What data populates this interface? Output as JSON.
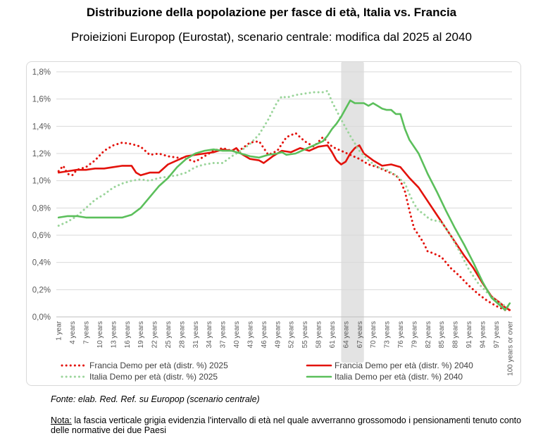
{
  "header": {
    "title": "Distribuzione della popolazione per fasce di età, Italia vs.  Francia",
    "subtitle": "Proieizioni Europop (Eurostat), scenario centrale: modifica dal 2025 al 2040"
  },
  "footer": {
    "source": "Fonte: elab. Red. Ref. su Europop (scenario centrale)",
    "note_label": "Nota:",
    "note_text": " la fascia verticale grigia evidenzia l'intervallo di età nel quale avverranno grossomodo i pensionamenti tenuto conto delle normative dei due Paesi"
  },
  "chart_data": {
    "type": "line",
    "ylim": [
      0,
      1.8
    ],
    "yticks": [
      "0,0%",
      "0,2%",
      "0,4%",
      "0,6%",
      "0,8%",
      "1,0%",
      "1,2%",
      "1,4%",
      "1,6%",
      "1,8%"
    ],
    "yticks_values": [
      0,
      0.2,
      0.4,
      0.6,
      0.8,
      1.0,
      1.2,
      1.4,
      1.6,
      1.8
    ],
    "categories_count": 100,
    "xtick_labels": [
      "1 year",
      "4 years",
      "7 years",
      "10 years",
      "13 years",
      "16 years",
      "19 years",
      "22 years",
      "25 years",
      "28 years",
      "31 years",
      "34 years",
      "37 years",
      "40 years",
      "43 years",
      "46 years",
      "49 years",
      "52 years",
      "55 years",
      "58 years",
      "61 years",
      "64 years",
      "67 years",
      "70 years",
      "73 years",
      "76 years",
      "79 years",
      "82 years",
      "85 years",
      "88 years",
      "91 years",
      "94 years",
      "97 years",
      "100 years or over"
    ],
    "xtick_indices": [
      1,
      4,
      7,
      10,
      13,
      16,
      19,
      22,
      25,
      28,
      31,
      34,
      37,
      40,
      43,
      46,
      49,
      52,
      55,
      58,
      61,
      64,
      67,
      70,
      73,
      76,
      79,
      82,
      85,
      88,
      91,
      94,
      97,
      100
    ],
    "highlight_band": [
      63,
      68
    ],
    "grid": true,
    "legend_position": "bottom",
    "series": [
      {
        "name": "Francia Demo per età (distr. %) 2025",
        "color": "#e3120b",
        "style": "dotted",
        "x": [
          1,
          2,
          3,
          4,
          5,
          7,
          9,
          11,
          13,
          15,
          17,
          19,
          21,
          23,
          25,
          27,
          29,
          31,
          33,
          35,
          37,
          39,
          41,
          43,
          45,
          47,
          49,
          51,
          53,
          55,
          57,
          59,
          61,
          63,
          65,
          67,
          69,
          71,
          73,
          75,
          76,
          77,
          78,
          79,
          80,
          81,
          82,
          83,
          85,
          87,
          89,
          91,
          93,
          95,
          97,
          99,
          100
        ],
        "y": [
          1.07,
          1.11,
          1.05,
          1.04,
          1.08,
          1.1,
          1.15,
          1.22,
          1.26,
          1.28,
          1.27,
          1.25,
          1.19,
          1.2,
          1.18,
          1.17,
          1.16,
          1.14,
          1.18,
          1.22,
          1.24,
          1.22,
          1.23,
          1.28,
          1.29,
          1.19,
          1.22,
          1.32,
          1.35,
          1.29,
          1.25,
          1.32,
          1.25,
          1.22,
          1.19,
          1.16,
          1.12,
          1.1,
          1.07,
          1.04,
          1.0,
          0.92,
          0.78,
          0.65,
          0.6,
          0.55,
          0.48,
          0.47,
          0.44,
          0.36,
          0.3,
          0.23,
          0.17,
          0.12,
          0.08,
          0.05,
          0.05
        ]
      },
      {
        "name": "Francia Demo per età (distr. %) 2040",
        "color": "#e3120b",
        "style": "solid",
        "x": [
          1,
          3,
          5,
          7,
          9,
          11,
          13,
          15,
          17,
          18,
          19,
          20,
          21,
          23,
          25,
          27,
          29,
          31,
          33,
          35,
          37,
          39,
          40,
          41,
          43,
          45,
          46,
          48,
          50,
          52,
          54,
          56,
          58,
          60,
          61,
          62,
          63,
          64,
          65,
          66,
          67,
          68,
          70,
          72,
          74,
          76,
          78,
          80,
          82,
          84,
          86,
          88,
          90,
          92,
          94,
          96,
          98,
          99,
          100
        ],
        "y": [
          1.06,
          1.07,
          1.08,
          1.08,
          1.09,
          1.09,
          1.1,
          1.11,
          1.11,
          1.06,
          1.04,
          1.05,
          1.06,
          1.06,
          1.12,
          1.15,
          1.18,
          1.19,
          1.2,
          1.21,
          1.23,
          1.22,
          1.24,
          1.2,
          1.16,
          1.15,
          1.13,
          1.18,
          1.22,
          1.21,
          1.24,
          1.22,
          1.25,
          1.26,
          1.21,
          1.15,
          1.12,
          1.14,
          1.2,
          1.24,
          1.26,
          1.2,
          1.15,
          1.11,
          1.12,
          1.1,
          1.02,
          0.95,
          0.85,
          0.75,
          0.65,
          0.55,
          0.45,
          0.36,
          0.25,
          0.15,
          0.1,
          0.07,
          0.05
        ]
      },
      {
        "name": "Italia Demo per età (distr. %) 2025",
        "color": "#9bd59b",
        "style": "dotted",
        "x": [
          1,
          3,
          5,
          7,
          9,
          11,
          13,
          15,
          17,
          19,
          21,
          23,
          25,
          27,
          29,
          31,
          33,
          35,
          37,
          39,
          41,
          43,
          45,
          47,
          49,
          50,
          51,
          53,
          55,
          57,
          59,
          60,
          61,
          63,
          65,
          67,
          69,
          71,
          73,
          75,
          77,
          78,
          79,
          80,
          81,
          82,
          83,
          85,
          87,
          89,
          91,
          93,
          95,
          97,
          99,
          100
        ],
        "y": [
          0.67,
          0.7,
          0.74,
          0.8,
          0.86,
          0.9,
          0.95,
          0.98,
          1.0,
          1.01,
          1.0,
          1.02,
          1.03,
          1.04,
          1.06,
          1.1,
          1.12,
          1.13,
          1.13,
          1.18,
          1.22,
          1.27,
          1.34,
          1.45,
          1.58,
          1.62,
          1.61,
          1.63,
          1.64,
          1.65,
          1.65,
          1.66,
          1.58,
          1.45,
          1.33,
          1.22,
          1.15,
          1.1,
          1.08,
          1.04,
          0.98,
          0.9,
          0.83,
          0.78,
          0.76,
          0.73,
          0.71,
          0.7,
          0.6,
          0.48,
          0.35,
          0.25,
          0.18,
          0.12,
          0.08,
          0.07
        ]
      },
      {
        "name": "Italia Demo per età (distr. %) 2040",
        "color": "#5bbf5b",
        "style": "solid",
        "x": [
          1,
          3,
          5,
          7,
          9,
          11,
          13,
          15,
          17,
          19,
          21,
          23,
          25,
          27,
          29,
          31,
          33,
          35,
          37,
          39,
          41,
          43,
          45,
          47,
          49,
          50,
          51,
          53,
          55,
          57,
          59,
          60,
          61,
          62,
          63,
          64,
          65,
          66,
          67,
          68,
          69,
          70,
          71,
          72,
          73,
          74,
          75,
          76,
          77,
          78,
          80,
          82,
          84,
          86,
          88,
          90,
          92,
          94,
          96,
          98,
          99,
          100
        ],
        "y": [
          0.73,
          0.74,
          0.74,
          0.73,
          0.73,
          0.73,
          0.73,
          0.73,
          0.75,
          0.8,
          0.88,
          0.96,
          1.02,
          1.1,
          1.16,
          1.2,
          1.22,
          1.23,
          1.22,
          1.22,
          1.2,
          1.18,
          1.17,
          1.19,
          1.2,
          1.21,
          1.19,
          1.2,
          1.23,
          1.26,
          1.29,
          1.33,
          1.38,
          1.42,
          1.47,
          1.53,
          1.59,
          1.57,
          1.57,
          1.57,
          1.55,
          1.57,
          1.55,
          1.53,
          1.52,
          1.52,
          1.49,
          1.49,
          1.38,
          1.3,
          1.2,
          1.05,
          0.92,
          0.78,
          0.65,
          0.53,
          0.4,
          0.26,
          0.14,
          0.08,
          0.05,
          0.1
        ]
      }
    ]
  }
}
